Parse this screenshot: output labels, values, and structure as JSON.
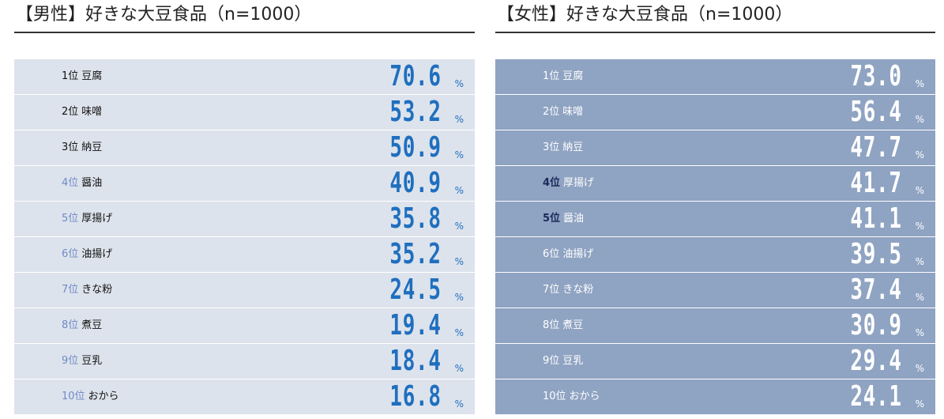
{
  "colors": {
    "male_row_bg": "#dde3ec",
    "male_value": "#1f6fbf",
    "male_rank_dark": "#111111",
    "male_rank_light": "#6f8ac7",
    "female_row_bg": "#8fa3c2",
    "female_text": "#ffffff",
    "female_rank_dark": "#1b2a5a"
  },
  "chart_data": [
    {
      "type": "table",
      "title": "【男性】好きな大豆食品（n=1000）",
      "unit": "%",
      "rows": [
        {
          "rank": "1位",
          "item": "豆腐",
          "value": "70.6",
          "rank_tone": "dark"
        },
        {
          "rank": "2位",
          "item": "味噌",
          "value": "53.2",
          "rank_tone": "dark"
        },
        {
          "rank": "3位",
          "item": "納豆",
          "value": "50.9",
          "rank_tone": "dark"
        },
        {
          "rank": "4位",
          "item": "醤油",
          "value": "40.9",
          "rank_tone": "light"
        },
        {
          "rank": "5位",
          "item": "厚揚げ",
          "value": "35.8",
          "rank_tone": "light"
        },
        {
          "rank": "6位",
          "item": "油揚げ",
          "value": "35.2",
          "rank_tone": "light"
        },
        {
          "rank": "7位",
          "item": "きな粉",
          "value": "24.5",
          "rank_tone": "light"
        },
        {
          "rank": "8位",
          "item": "煮豆",
          "value": "19.4",
          "rank_tone": "light"
        },
        {
          "rank": "9位",
          "item": "豆乳",
          "value": "18.4",
          "rank_tone": "light"
        },
        {
          "rank": "10位",
          "item": "おから",
          "value": "16.8",
          "rank_tone": "light"
        }
      ]
    },
    {
      "type": "table",
      "title": "【女性】好きな大豆食品（n=1000）",
      "unit": "%",
      "rows": [
        {
          "rank": "1位",
          "item": "豆腐",
          "value": "73.0",
          "rank_tone": "white"
        },
        {
          "rank": "2位",
          "item": "味噌",
          "value": "56.4",
          "rank_tone": "white"
        },
        {
          "rank": "3位",
          "item": "納豆",
          "value": "47.7",
          "rank_tone": "white"
        },
        {
          "rank": "4位",
          "item": "厚揚げ",
          "value": "41.7",
          "rank_tone": "dark"
        },
        {
          "rank": "5位",
          "item": "醤油",
          "value": "41.1",
          "rank_tone": "dark"
        },
        {
          "rank": "6位",
          "item": "油揚げ",
          "value": "39.5",
          "rank_tone": "white"
        },
        {
          "rank": "7位",
          "item": "きな粉",
          "value": "37.4",
          "rank_tone": "white"
        },
        {
          "rank": "8位",
          "item": "煮豆",
          "value": "30.9",
          "rank_tone": "white"
        },
        {
          "rank": "9位",
          "item": "豆乳",
          "value": "29.4",
          "rank_tone": "white"
        },
        {
          "rank": "10位",
          "item": "おから",
          "value": "24.1",
          "rank_tone": "white"
        }
      ]
    }
  ]
}
